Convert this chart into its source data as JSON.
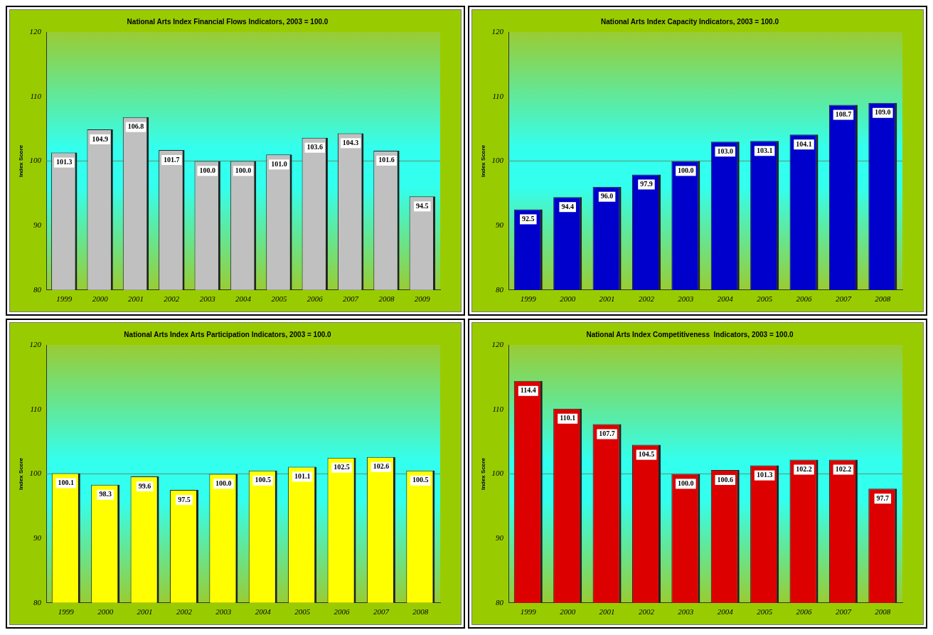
{
  "chart_data": [
    {
      "type": "bar",
      "title": "National Arts Index Financial Flows Indicators, 2003 = 100.0",
      "ylabel": "Index Score",
      "categories": [
        "1999",
        "2000",
        "2001",
        "2002",
        "2003",
        "2004",
        "2005",
        "2006",
        "2007",
        "2008",
        "2009"
      ],
      "values": [
        101.3,
        104.9,
        106.8,
        101.7,
        100.0,
        100.0,
        101.0,
        103.6,
        104.3,
        101.6,
        94.5
      ],
      "value_labels": [
        "101.3",
        "104.9",
        "106.8",
        "101.7",
        "100.0",
        "100.0",
        "101.0",
        "103.6",
        "104.3",
        "101.6",
        "94.5"
      ],
      "color": "#c0c0c0",
      "ylim": [
        80,
        120
      ],
      "yticks": [
        80,
        90,
        100,
        110,
        120
      ],
      "grid": false,
      "legend": false,
      "ref_lines": [
        {
          "axis": "y",
          "value": 100,
          "color": "#5f8f6f"
        }
      ]
    },
    {
      "type": "bar",
      "title": "National Arts Index Capacity Indicators, 2003 = 100.0",
      "ylabel": "Index Score",
      "categories": [
        "1999",
        "2000",
        "2001",
        "2002",
        "2003",
        "2004",
        "2005",
        "2006",
        "2007",
        "2008"
      ],
      "values": [
        92.5,
        94.4,
        96.0,
        97.9,
        100.0,
        103.0,
        103.1,
        104.1,
        108.7,
        109.0
      ],
      "value_labels": [
        "92.5",
        "94.4",
        "96.0",
        "97.9",
        "100.0",
        "103.0",
        "103.1",
        "104.1",
        "108.7",
        "109.0"
      ],
      "color": "#0000cc",
      "ylim": [
        80,
        120
      ],
      "yticks": [
        80,
        90,
        100,
        110,
        120
      ],
      "grid": false,
      "legend": false,
      "ref_lines": [
        {
          "axis": "y",
          "value": 100,
          "color": "#5f8f6f"
        }
      ]
    },
    {
      "type": "bar",
      "title": "National Arts Index Arts Participation Indicators, 2003 = 100.0",
      "ylabel": "Index Score",
      "categories": [
        "1999",
        "2000",
        "2001",
        "2002",
        "2003",
        "2004",
        "2005",
        "2006",
        "2007",
        "2008"
      ],
      "values": [
        100.1,
        98.3,
        99.6,
        97.5,
        100.0,
        100.5,
        101.1,
        102.5,
        102.6,
        100.5
      ],
      "value_labels": [
        "100.1",
        "98.3",
        "99.6",
        "97.5",
        "100.0",
        "100.5",
        "101.1",
        "102.5",
        "102.6",
        "100.5"
      ],
      "color": "#ffff00",
      "ylim": [
        80,
        120
      ],
      "yticks": [
        80,
        90,
        100,
        110,
        120
      ],
      "grid": false,
      "legend": false,
      "ref_lines": [
        {
          "axis": "y",
          "value": 100,
          "color": "#5f8f6f"
        }
      ]
    },
    {
      "type": "bar",
      "title": "National Arts Index Competitiveness  Indicators, 2003 = 100.0",
      "ylabel": "Index Score",
      "categories": [
        "1999",
        "2000",
        "2001",
        "2002",
        "2003",
        "2004",
        "2005",
        "2006",
        "2007",
        "2008"
      ],
      "values": [
        114.4,
        110.1,
        107.7,
        104.5,
        100.0,
        100.6,
        101.3,
        102.2,
        102.2,
        97.7
      ],
      "value_labels": [
        "114.4",
        "110.1",
        "107.7",
        "104.5",
        "100.0",
        "100.6",
        "101.3",
        "102.2",
        "102.2",
        "97.7"
      ],
      "color": "#dd0000",
      "ylim": [
        80,
        120
      ],
      "yticks": [
        80,
        90,
        100,
        110,
        120
      ],
      "grid": false,
      "legend": false,
      "ref_lines": [
        {
          "axis": "y",
          "value": 100,
          "color": "#5f8f6f"
        }
      ]
    }
  ]
}
